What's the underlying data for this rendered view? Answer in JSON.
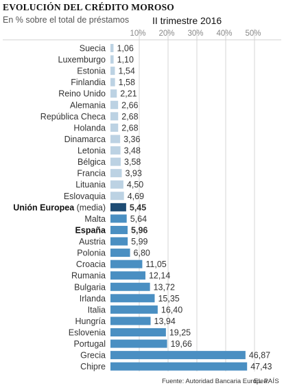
{
  "header": {
    "title": "EVOLUCIÓN DEL CRÉDITO MOROSO",
    "subtitle": "En % sobre el total de préstamos",
    "period": "II trimestre 2016"
  },
  "footer": {
    "source": "Fuente: Autoridad Bancaria Europea.",
    "brand": "EL PAÍS"
  },
  "colors": {
    "light": "#bcd2e3",
    "medium": "#4a8fc2",
    "highlight": "#1e4c74",
    "grid": "#d4d4d4",
    "separator": "#d0d0d0"
  },
  "chart_data": {
    "type": "bar",
    "orientation": "horizontal",
    "title": "EVOLUCIÓN DEL CRÉDITO MOROSO",
    "subtitle": "En % sobre el total de préstamos",
    "xlim": [
      0,
      50
    ],
    "xticks": [
      10,
      20,
      30,
      40,
      50
    ],
    "xtick_labels": [
      "10%",
      "20%",
      "30%",
      "40%",
      "50%"
    ],
    "axis_position": "top",
    "grid": true,
    "categories": [
      {
        "name": "Suecia",
        "suffix": "",
        "value": 1.06,
        "label": "1,06",
        "tone": "light",
        "bold": false
      },
      {
        "name": "Luxemburgo",
        "suffix": "",
        "value": 1.1,
        "label": "1,10",
        "tone": "light",
        "bold": false
      },
      {
        "name": "Estonia",
        "suffix": "",
        "value": 1.54,
        "label": "1,54",
        "tone": "light",
        "bold": false
      },
      {
        "name": "Finlandia",
        "suffix": "",
        "value": 1.58,
        "label": "1,58",
        "tone": "light",
        "bold": false
      },
      {
        "name": "Reino Unido",
        "suffix": "",
        "value": 2.21,
        "label": "2,21",
        "tone": "light",
        "bold": false
      },
      {
        "name": "Alemania",
        "suffix": "",
        "value": 2.66,
        "label": "2,66",
        "tone": "light",
        "bold": false
      },
      {
        "name": "República Checa",
        "suffix": "",
        "value": 2.68,
        "label": "2,68",
        "tone": "light",
        "bold": false
      },
      {
        "name": "Holanda",
        "suffix": "",
        "value": 2.68,
        "label": "2,68",
        "tone": "light",
        "bold": false
      },
      {
        "name": "Dinamarca",
        "suffix": "",
        "value": 3.36,
        "label": "3,36",
        "tone": "light",
        "bold": false
      },
      {
        "name": "Letonia",
        "suffix": "",
        "value": 3.48,
        "label": "3,48",
        "tone": "light",
        "bold": false
      },
      {
        "name": "Bélgica",
        "suffix": "",
        "value": 3.58,
        "label": "3,58",
        "tone": "light",
        "bold": false
      },
      {
        "name": "Francia",
        "suffix": "",
        "value": 3.93,
        "label": "3,93",
        "tone": "light",
        "bold": false
      },
      {
        "name": "Lituania",
        "suffix": "",
        "value": 4.5,
        "label": "4,50",
        "tone": "light",
        "bold": false
      },
      {
        "name": "Eslovaquia",
        "suffix": "",
        "value": 4.69,
        "label": "4,69",
        "tone": "light",
        "bold": false
      },
      {
        "name": "Unión Europea",
        "suffix": " (media)",
        "value": 5.45,
        "label": "5,45",
        "tone": "highlight",
        "bold": true
      },
      {
        "name": "Malta",
        "suffix": "",
        "value": 5.64,
        "label": "5,64",
        "tone": "medium",
        "bold": false
      },
      {
        "name": "España",
        "suffix": "",
        "value": 5.96,
        "label": "5,96",
        "tone": "medium",
        "bold": true
      },
      {
        "name": "Austria",
        "suffix": "",
        "value": 5.99,
        "label": "5,99",
        "tone": "medium",
        "bold": false
      },
      {
        "name": "Polonia",
        "suffix": "",
        "value": 6.8,
        "label": "6,80",
        "tone": "medium",
        "bold": false
      },
      {
        "name": "Croacia",
        "suffix": "",
        "value": 11.05,
        "label": "11,05",
        "tone": "medium",
        "bold": false
      },
      {
        "name": "Rumania",
        "suffix": "",
        "value": 12.14,
        "label": "12,14",
        "tone": "medium",
        "bold": false
      },
      {
        "name": "Bulgaria",
        "suffix": "",
        "value": 13.72,
        "label": "13,72",
        "tone": "medium",
        "bold": false
      },
      {
        "name": "Irlanda",
        "suffix": "",
        "value": 15.35,
        "label": "15,35",
        "tone": "medium",
        "bold": false
      },
      {
        "name": "Italia",
        "suffix": "",
        "value": 16.4,
        "label": "16,40",
        "tone": "medium",
        "bold": false
      },
      {
        "name": "Hungría",
        "suffix": "",
        "value": 13.94,
        "label": "13,94",
        "tone": "medium",
        "bold": false
      },
      {
        "name": "Eslovenia",
        "suffix": "",
        "value": 19.25,
        "label": "19,25",
        "tone": "medium",
        "bold": false
      },
      {
        "name": "Portugal",
        "suffix": "",
        "value": 19.66,
        "label": "19,66",
        "tone": "medium",
        "bold": false
      },
      {
        "name": "Grecia",
        "suffix": "",
        "value": 46.87,
        "label": "46,87",
        "tone": "medium",
        "bold": false
      },
      {
        "name": "Chipre",
        "suffix": "",
        "value": 47.43,
        "label": "47,43",
        "tone": "medium",
        "bold": false
      }
    ]
  }
}
